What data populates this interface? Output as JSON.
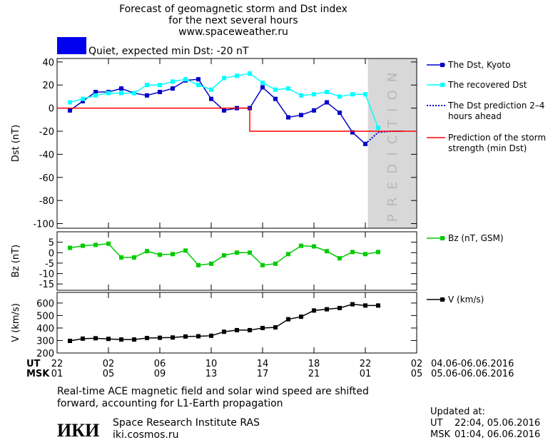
{
  "header": {
    "title_lines": [
      "Forecast of geomagnetic storm and Dst index",
      "for the next several hours",
      "www.spaceweather.ru"
    ],
    "status": {
      "color": "#0000ee",
      "text": "Quiet, expected min Dst: -20 nT"
    }
  },
  "chart_data": [
    {
      "type": "line",
      "ylabel": "Dst (nT)",
      "xlim": [
        0,
        28
      ],
      "ylim": [
        -104,
        43
      ],
      "yticks": [
        -100,
        -80,
        -60,
        -40,
        -20,
        0,
        20,
        40
      ],
      "prediction_region": {
        "xlim": [
          24.2,
          28
        ],
        "label": "PREDICTION",
        "color": "#d8d8d8"
      },
      "series": [
        {
          "name": "The Dst, Kyoto",
          "color": "#0000cc",
          "marker": true,
          "x": [
            1,
            2,
            3,
            4,
            5,
            6,
            7,
            8,
            9,
            10,
            11,
            12,
            13,
            14,
            15,
            16,
            17,
            18,
            19,
            20,
            21,
            22,
            23,
            24
          ],
          "values": [
            -2,
            6,
            14,
            14,
            17,
            13,
            11,
            14,
            17,
            24,
            25,
            8,
            -2,
            0,
            0,
            18,
            8,
            -8,
            -6,
            -2,
            5,
            -4,
            -21,
            -31
          ]
        },
        {
          "name": "The recovered Dst",
          "color": "#00ffff",
          "marker": true,
          "x": [
            1,
            2,
            3,
            4,
            5,
            6,
            7,
            8,
            9,
            10,
            11,
            12,
            13,
            14,
            15,
            16,
            17,
            18,
            19,
            20,
            21,
            22,
            23,
            24,
            25
          ],
          "values": [
            5,
            8,
            11,
            13,
            13,
            13,
            20,
            20,
            23,
            25,
            20,
            16,
            26,
            28,
            30,
            22,
            16,
            17,
            11,
            12,
            14,
            10,
            12,
            12,
            -17
          ]
        },
        {
          "name": "The Dst prediction 2–4 hours ahead",
          "color": "#0000cc",
          "marker": false,
          "dash": "dotted",
          "x": [
            24,
            25,
            26,
            27
          ],
          "values": [
            -31,
            -21,
            -20,
            -20
          ]
        },
        {
          "name": "Prediction of the storm strength (min Dst)",
          "color": "#ff0000",
          "marker": false,
          "x": [
            0,
            15,
            15,
            28
          ],
          "values": [
            0,
            0,
            -20,
            -20
          ]
        }
      ]
    },
    {
      "type": "line",
      "ylabel": "Bz (nT)",
      "xlim": [
        0,
        28
      ],
      "ylim": [
        -18,
        10
      ],
      "yticks": [
        -15,
        -10,
        -5,
        0,
        5
      ],
      "series": [
        {
          "name": "Bz (nT, GSM)",
          "color": "#00cc00",
          "marker": true,
          "x": [
            1,
            2,
            3,
            4,
            5,
            6,
            7,
            8,
            9,
            10,
            11,
            12,
            13,
            14,
            15,
            16,
            17,
            18,
            19,
            20,
            21,
            22,
            23,
            24,
            25
          ],
          "values": [
            2.3,
            3.3,
            3.7,
            4.3,
            -2.3,
            -2.3,
            0.7,
            -1,
            -0.7,
            1,
            -6,
            -5.3,
            -1.3,
            0,
            0,
            -6,
            -5.3,
            -0.7,
            3.3,
            3,
            0.7,
            -2.7,
            0.3,
            -0.7,
            0.3
          ]
        }
      ]
    },
    {
      "type": "line",
      "ylabel": "V (km/s)",
      "xlim": [
        0,
        28
      ],
      "ylim": [
        200,
        685
      ],
      "yticks": [
        200,
        300,
        400,
        500,
        600
      ],
      "xticks": [
        {
          "value": 0,
          "label": "22"
        },
        {
          "value": 4,
          "label": "02"
        },
        {
          "value": 8,
          "label": "06"
        },
        {
          "value": 12,
          "label": "10"
        },
        {
          "value": 16,
          "label": "14"
        },
        {
          "value": 20,
          "label": "18"
        },
        {
          "value": 24,
          "label": "22"
        },
        {
          "value": 28,
          "label": "02"
        }
      ],
      "msk_ticks": [
        {
          "value": 0,
          "label": "01"
        },
        {
          "value": 4,
          "label": "05"
        },
        {
          "value": 8,
          "label": "09"
        },
        {
          "value": 12,
          "label": "13"
        },
        {
          "value": 16,
          "label": "17"
        },
        {
          "value": 20,
          "label": "21"
        },
        {
          "value": 24,
          "label": "01"
        },
        {
          "value": 28,
          "label": "05"
        }
      ],
      "ut_label": "UT",
      "msk_label": "MSK",
      "ut_range": "04.06-06.06.2016",
      "msk_range": "05.06-06.06.2016",
      "series": [
        {
          "name": "V (km/s)",
          "color": "#000000",
          "marker": true,
          "x": [
            1,
            2,
            3,
            4,
            5,
            6,
            7,
            8,
            9,
            10,
            11,
            12,
            13,
            14,
            15,
            16,
            17,
            18,
            19,
            20,
            21,
            22,
            23,
            24,
            25
          ],
          "values": [
            297,
            315,
            318,
            313,
            308,
            308,
            320,
            322,
            324,
            332,
            334,
            338,
            370,
            383,
            383,
            400,
            405,
            470,
            490,
            540,
            550,
            560,
            590,
            580,
            580
          ]
        }
      ]
    }
  ],
  "footer": {
    "note_lines": [
      "Real-time ACE magnetic field and solar wind speed are shifted",
      "forward, accounting for L1-Earth propagation"
    ],
    "logo": "ИКИ",
    "institute": "Space Research Institute RAS",
    "url": "iki.cosmos.ru",
    "updated_title": "Updated at:",
    "updated": [
      {
        "zone": "UT",
        "time": "22:04, 05.06.2016"
      },
      {
        "zone": "MSK",
        "time": "01:04, 06.06.2016"
      }
    ]
  }
}
